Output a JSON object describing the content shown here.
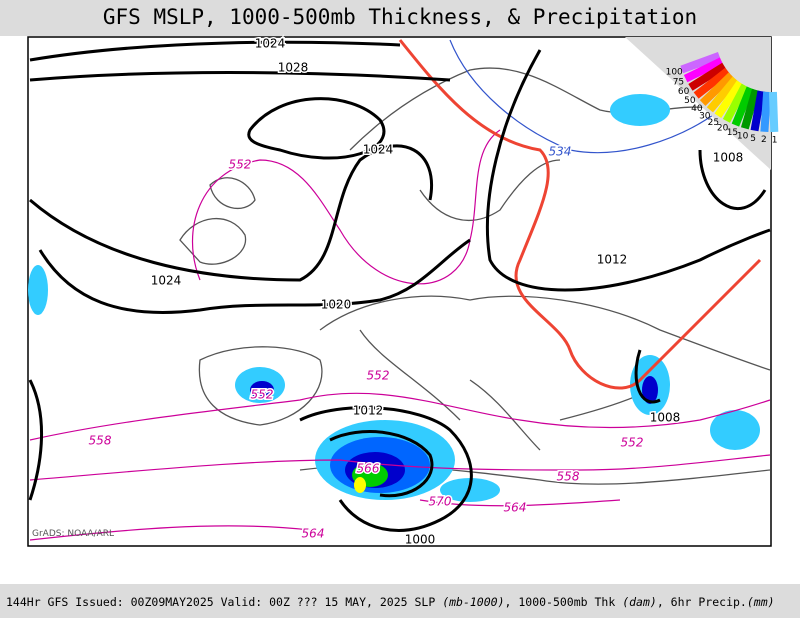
{
  "header": {
    "title": "GFS MSLP, 1000-500mb Thickness, & Precipitation"
  },
  "map": {
    "isobar_labels": [
      "1024",
      "1028",
      "1024",
      "1024",
      "1020",
      "1012",
      "1008",
      "1012",
      "1008",
      "1000"
    ],
    "thickness_labels": [
      "552",
      "552",
      "552",
      "558",
      "552",
      "558",
      "570",
      "564",
      "564",
      "566"
    ],
    "cold_thickness_label": "534",
    "credit": "GrADS: NOAA/ARL"
  },
  "legend": {
    "labels": [
      "100",
      "75",
      "60",
      "50",
      "40",
      "30",
      "25",
      "20",
      "15",
      "10",
      "5",
      "2",
      "1"
    ]
  },
  "footer": {
    "parts": [
      "144Hr GFS Issued: 00Z09MAY2025 Valid: 00Z ??? 15 MAY, 2025  SLP ",
      "(mb-1000)",
      ", 1000-500mb Thk ",
      "(dam)",
      ", 6hr Precip.",
      "(mm)"
    ]
  }
}
